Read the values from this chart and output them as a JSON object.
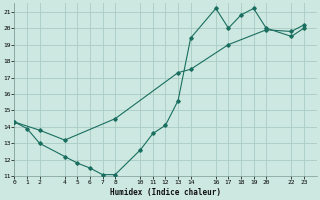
{
  "xlabel": "Humidex (Indice chaleur)",
  "bg_color": "#cce8e0",
  "grid_color": "#aaccc4",
  "line_color": "#1a6e60",
  "line1": {
    "x": [
      0,
      1,
      2,
      4,
      5,
      6,
      7,
      8,
      10,
      11,
      12,
      13,
      14,
      16,
      17,
      18,
      19,
      20,
      22,
      23
    ],
    "y": [
      14.3,
      13.9,
      13.0,
      12.2,
      11.8,
      11.5,
      11.1,
      11.1,
      12.6,
      13.6,
      14.1,
      15.6,
      19.4,
      21.2,
      20.0,
      20.8,
      21.2,
      20.0,
      19.5,
      20.0
    ]
  },
  "line2": {
    "x": [
      0,
      2,
      4,
      8,
      13,
      14,
      17,
      20,
      22,
      23
    ],
    "y": [
      14.3,
      13.8,
      13.2,
      14.5,
      17.3,
      17.5,
      19.0,
      19.9,
      19.8,
      20.2
    ]
  },
  "xlim": [
    0,
    24
  ],
  "ylim": [
    11,
    21.5
  ],
  "xticks": [
    0,
    1,
    2,
    4,
    5,
    6,
    7,
    8,
    10,
    11,
    12,
    13,
    14,
    16,
    17,
    18,
    19,
    20,
    22,
    23
  ],
  "yticks": [
    11,
    12,
    13,
    14,
    15,
    16,
    17,
    18,
    19,
    20,
    21
  ]
}
